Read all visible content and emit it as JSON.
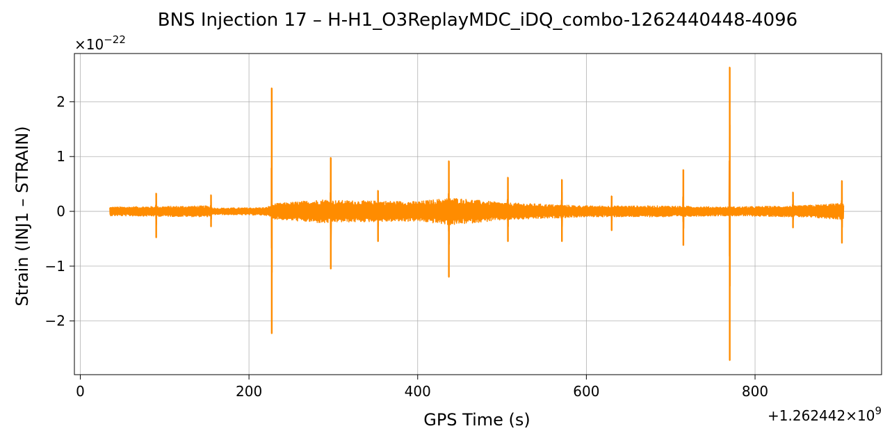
{
  "chart_data": {
    "type": "line",
    "title": "BNS Injection 17 – H-H1_O3ReplayMDC_iDQ_combo-1262440448-4096",
    "xlabel": "GPS Time (s)",
    "ylabel": "Strain (INJ1 – STRAIN)",
    "x_offset_label": "+1.262442×10⁹",
    "x_offset_base": "+1.262442×10",
    "x_offset_exp": "9",
    "y_scale_base": "×10",
    "y_scale_exp": "−22",
    "xlim": [
      -7,
      950
    ],
    "ylim": [
      -2.98,
      2.88
    ],
    "x_ticks": [
      0,
      200,
      400,
      600,
      800
    ],
    "x_tick_labels": [
      "0",
      "200",
      "400",
      "600",
      "800"
    ],
    "y_ticks": [
      -2,
      -1,
      0,
      1,
      2
    ],
    "y_tick_labels": [
      "−2",
      "−1",
      "0",
      "1",
      "2"
    ],
    "grid": true,
    "color": "#ff8c00",
    "series": [
      {
        "x_range": [
          35,
          905
        ],
        "baseline_envelope": [
          {
            "x": 35,
            "amp": 0.08
          },
          {
            "x": 150,
            "amp": 0.1
          },
          {
            "x": 160,
            "amp": 0.06
          },
          {
            "x": 220,
            "amp": 0.07
          },
          {
            "x": 230,
            "amp": 0.14
          },
          {
            "x": 290,
            "amp": 0.22
          },
          {
            "x": 300,
            "amp": 0.2
          },
          {
            "x": 400,
            "amp": 0.18
          },
          {
            "x": 440,
            "amp": 0.25
          },
          {
            "x": 500,
            "amp": 0.16
          },
          {
            "x": 600,
            "amp": 0.1
          },
          {
            "x": 700,
            "amp": 0.1
          },
          {
            "x": 760,
            "amp": 0.08
          },
          {
            "x": 850,
            "amp": 0.1
          },
          {
            "x": 905,
            "amp": 0.15
          }
        ],
        "spikes": [
          {
            "x": 90,
            "max": 0.33,
            "min": -0.48
          },
          {
            "x": 155,
            "max": 0.3,
            "min": -0.28
          },
          {
            "x": 227,
            "max": 2.25,
            "min": -2.23
          },
          {
            "x": 297,
            "max": 0.98,
            "min": -1.05
          },
          {
            "x": 353,
            "max": 0.38,
            "min": -0.55
          },
          {
            "x": 437,
            "max": 0.92,
            "min": -1.2
          },
          {
            "x": 507,
            "max": 0.62,
            "min": -0.55
          },
          {
            "x": 571,
            "max": 0.58,
            "min": -0.55
          },
          {
            "x": 630,
            "max": 0.28,
            "min": -0.35
          },
          {
            "x": 715,
            "max": 0.76,
            "min": -0.62
          },
          {
            "x": 770,
            "max": 2.63,
            "min": -2.72
          },
          {
            "x": 845,
            "max": 0.35,
            "min": -0.3
          },
          {
            "x": 903,
            "max": 0.56,
            "min": -0.58
          }
        ]
      }
    ]
  }
}
